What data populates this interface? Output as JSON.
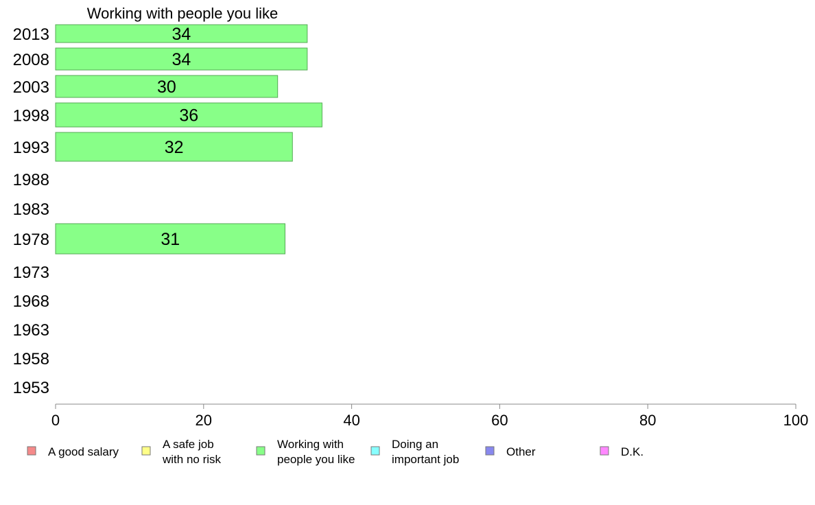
{
  "chart_data": {
    "type": "bar",
    "orientation": "horizontal",
    "title": "Working with people you like",
    "categories": [
      "2013",
      "2008",
      "2003",
      "1998",
      "1993",
      "1988",
      "1983",
      "1978",
      "1973",
      "1968",
      "1963",
      "1958",
      "1953"
    ],
    "values": [
      34,
      34,
      30,
      36,
      32,
      null,
      null,
      31,
      null,
      null,
      null,
      null,
      null
    ],
    "xlim": [
      0,
      100
    ],
    "x_ticks": [
      0,
      20,
      40,
      60,
      80,
      100
    ],
    "xlabel": "",
    "ylabel": "",
    "bar_color": "#88ff88",
    "bar_edge_color": "#55aa55",
    "legend": {
      "placement": "bottom",
      "items": [
        {
          "lines": [
            "A good salary"
          ],
          "color": "#f58a8a"
        },
        {
          "lines": [
            "A safe job",
            "with no risk"
          ],
          "color": "#ffff88"
        },
        {
          "lines": [
            "Working with",
            "people you like"
          ],
          "color": "#88ff88"
        },
        {
          "lines": [
            "Doing an",
            "important job"
          ],
          "color": "#88ffff"
        },
        {
          "lines": [
            "Other"
          ],
          "color": "#8888ee"
        },
        {
          "lines": [
            "D.K."
          ],
          "color": "#ff88ff"
        }
      ]
    }
  }
}
